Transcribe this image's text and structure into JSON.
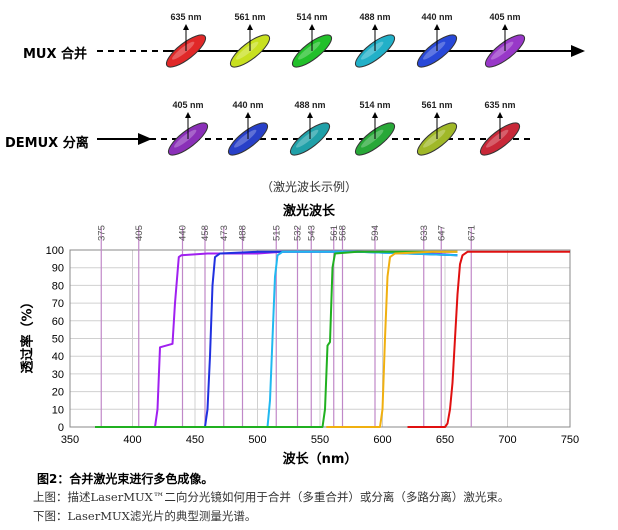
{
  "diagram": {
    "mux": {
      "label": "MUX 合并",
      "wavelengths": [
        "635 nm",
        "561 nm",
        "514 nm",
        "488 nm",
        "440 nm",
        "405 nm"
      ],
      "colors": [
        "#e02828",
        "#c8e020",
        "#22c02a",
        "#22b0c8",
        "#2848d8",
        "#9838c8"
      ]
    },
    "demux": {
      "label": "DEMUX 分离",
      "wavelengths": [
        "405 nm",
        "440 nm",
        "488 nm",
        "514 nm",
        "561 nm",
        "635 nm"
      ],
      "colors": [
        "#8a30b8",
        "#2840c8",
        "#20a0a8",
        "#28a838",
        "#a0b828",
        "#c82838"
      ]
    },
    "caption": "（激光波长示例）"
  },
  "chart_data": {
    "type": "line",
    "title": "激光波长",
    "xlabel": "波长（nm）",
    "ylabel": "透过率（%）",
    "xlim": [
      350,
      750
    ],
    "ylim": [
      0,
      100
    ],
    "xticks": [
      350,
      400,
      450,
      500,
      550,
      600,
      650,
      700,
      750
    ],
    "yticks": [
      0,
      10,
      20,
      30,
      40,
      50,
      60,
      70,
      80,
      90,
      100
    ],
    "laser_lines": {
      "color": "#c088c8",
      "values": [
        375,
        405,
        440,
        458,
        473,
        488,
        515,
        532,
        543,
        561,
        568,
        594,
        633,
        647,
        671
      ]
    },
    "series": [
      {
        "color": "#a020f0",
        "x": [
          370,
          418,
          420,
          422,
          432,
          434,
          437,
          439,
          460,
          480,
          500,
          520,
          540,
          560,
          580,
          600,
          620,
          640,
          660
        ],
        "y": [
          0,
          0,
          10,
          45,
          47,
          70,
          96,
          97,
          98,
          98,
          98,
          99,
          99,
          99,
          99,
          99,
          98,
          98,
          97
        ]
      },
      {
        "color": "#2030e0",
        "x": [
          370,
          458,
          460,
          462,
          464,
          466,
          470,
          500,
          540,
          580,
          620,
          660
        ],
        "y": [
          0,
          0,
          10,
          40,
          80,
          96,
          98,
          99,
          99,
          99,
          98,
          97
        ]
      },
      {
        "color": "#20b8f0",
        "x": [
          370,
          508,
          510,
          512,
          514,
          516,
          520,
          540,
          580,
          620,
          660
        ],
        "y": [
          0,
          0,
          15,
          50,
          85,
          97,
          99,
          99,
          99,
          98,
          97
        ]
      },
      {
        "color": "#20b020",
        "x": [
          370,
          552,
          554,
          556,
          558,
          560,
          562,
          580,
          620,
          660
        ],
        "y": [
          0,
          0,
          10,
          46,
          48,
          90,
          98,
          99,
          99,
          99
        ]
      },
      {
        "color": "#f0b010",
        "x": [
          555,
          598,
          600,
          602,
          604,
          606,
          610,
          640,
          660
        ],
        "y": [
          0,
          0,
          10,
          50,
          85,
          96,
          98,
          99,
          99
        ]
      },
      {
        "color": "#e01010",
        "x": [
          620,
          650,
          652,
          654,
          656,
          658,
          660,
          662,
          664,
          668,
          700,
          750
        ],
        "y": [
          0,
          0,
          2,
          10,
          25,
          50,
          75,
          92,
          97,
          99,
          99,
          99
        ]
      }
    ]
  },
  "figure": {
    "title": "图2：合并激光束进行多色成像。",
    "line1": "上图：描述LaserMUX™二向分光镜如何用于合并（多重合并）或分离（多路分离）激光束。",
    "line2": "下图：LaserMUX滤光片的典型测量光谱。"
  }
}
